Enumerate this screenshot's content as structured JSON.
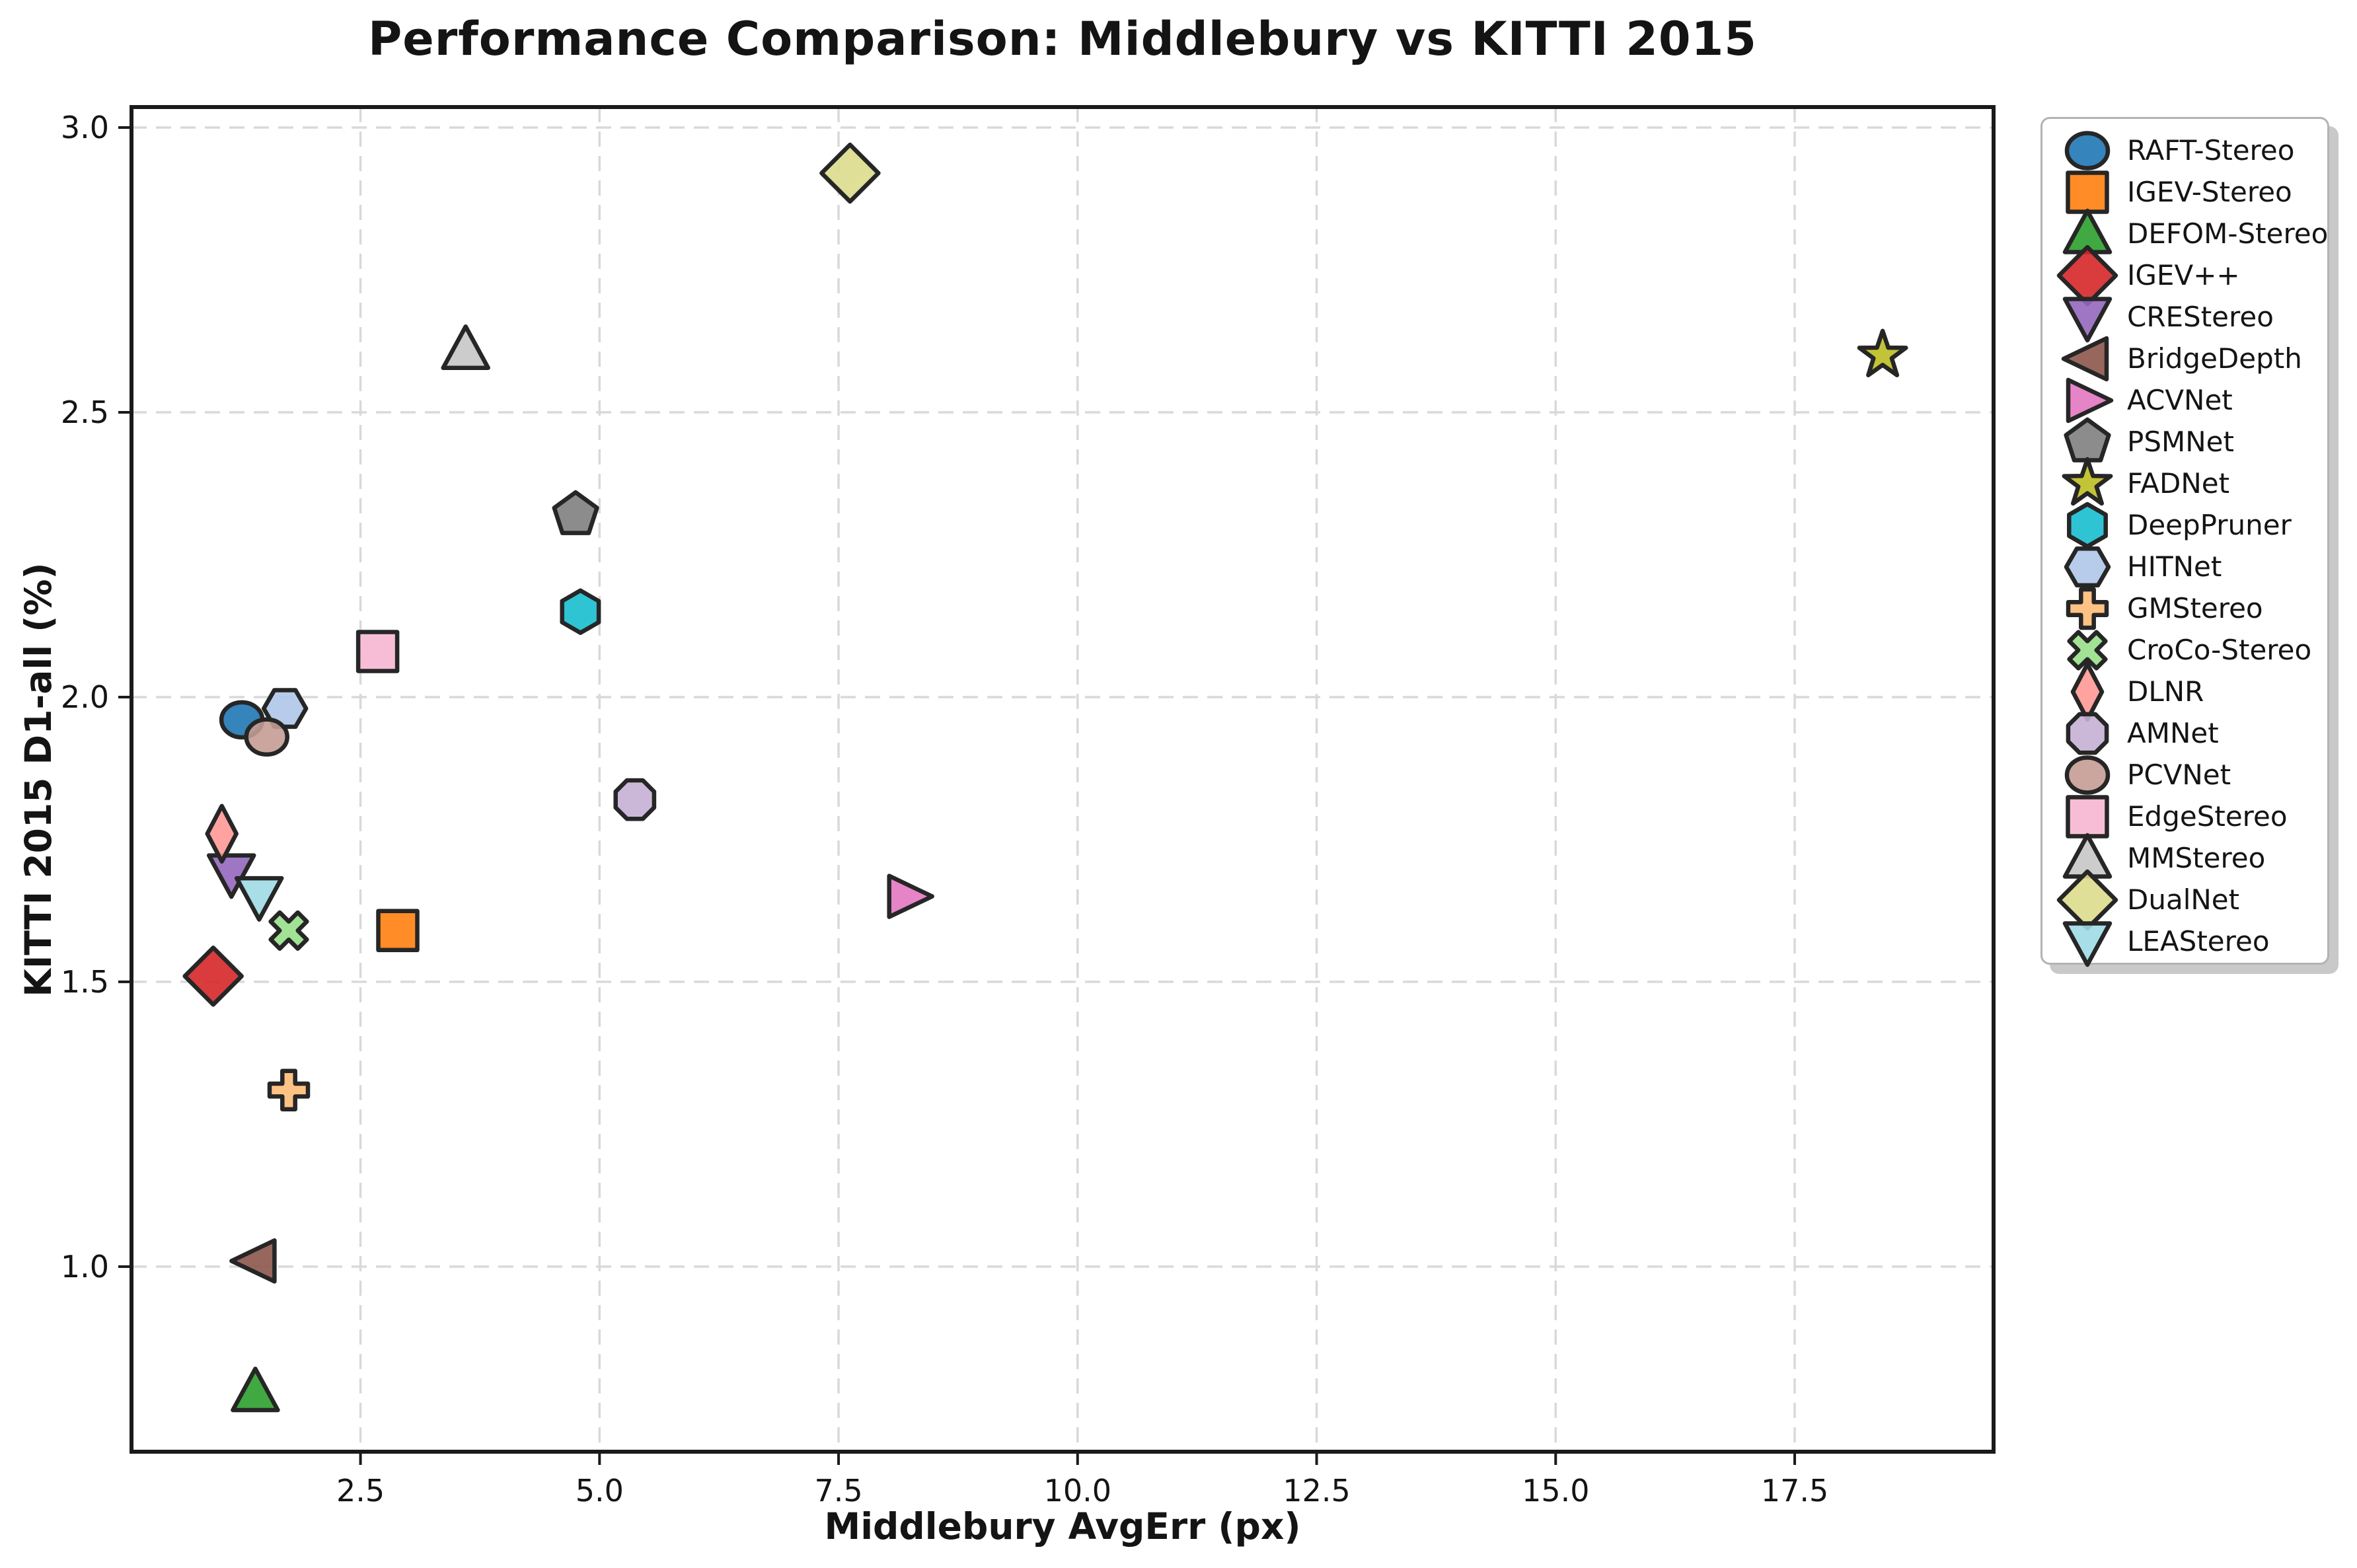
{
  "chart_data": {
    "type": "scatter",
    "title": "Performance Comparison: Middlebury vs KITTI 2015",
    "xlabel": "Middlebury AvgErr (px)",
    "ylabel": "KITTI 2015 D1-all (%)",
    "xlim": [
      0.105,
      19.58
    ],
    "ylim": [
      0.675,
      3.036
    ],
    "grid": true,
    "legend_position": "right-outside",
    "xticks": [
      {
        "v": 2.5,
        "label": "2.5"
      },
      {
        "v": 5.0,
        "label": "5.0"
      },
      {
        "v": 7.5,
        "label": "7.5"
      },
      {
        "v": 10.0,
        "label": "10.0"
      },
      {
        "v": 12.5,
        "label": "12.5"
      },
      {
        "v": 15.0,
        "label": "15.0"
      },
      {
        "v": 17.5,
        "label": "17.5"
      }
    ],
    "yticks": [
      {
        "v": 1.0,
        "label": "1.0"
      },
      {
        "v": 1.5,
        "label": "1.5"
      },
      {
        "v": 2.0,
        "label": "2.0"
      },
      {
        "v": 2.5,
        "label": "2.5"
      },
      {
        "v": 3.0,
        "label": "3.0"
      }
    ],
    "colors": {
      "grid": "#d9d9d9",
      "spine": "#1a1a1a",
      "marker_edge": "#262626",
      "tick_text": "#141414",
      "legend_border": "#b3b3b3",
      "legend_shadow": "#c9c9c9"
    },
    "series": [
      {
        "name": "RAFT-Stereo",
        "marker": "circle",
        "color": "#1f77b4",
        "x": 1.26,
        "y": 1.96
      },
      {
        "name": "IGEV-Stereo",
        "marker": "square",
        "color": "#ff7f0e",
        "x": 2.89,
        "y": 1.59
      },
      {
        "name": "DEFOM-Stereo",
        "marker": "triangle-up",
        "color": "#2ca02c",
        "x": 1.4,
        "y": 0.78
      },
      {
        "name": "IGEV++",
        "marker": "diamond",
        "color": "#d62728",
        "x": 0.96,
        "y": 1.51
      },
      {
        "name": "CREStereo",
        "marker": "triangle-down",
        "color": "#9467bd",
        "x": 1.15,
        "y": 1.69
      },
      {
        "name": "BridgeDepth",
        "marker": "triangle-left",
        "color": "#8c564b",
        "x": 1.4,
        "y": 1.01
      },
      {
        "name": "ACVNet",
        "marker": "triangle-right",
        "color": "#e377c2",
        "x": 8.23,
        "y": 1.65
      },
      {
        "name": "PSMNet",
        "marker": "pentagon",
        "color": "#7f7f7f",
        "x": 4.75,
        "y": 2.32
      },
      {
        "name": "FADNet",
        "marker": "star",
        "color": "#bcbd22",
        "x": 18.42,
        "y": 2.6
      },
      {
        "name": "DeepPruner",
        "marker": "hexagon-up",
        "color": "#17becf",
        "x": 4.8,
        "y": 2.15
      },
      {
        "name": "HITNet",
        "marker": "hexagon-flat",
        "color": "#aec7e8",
        "x": 1.71,
        "y": 1.98
      },
      {
        "name": "GMStereo",
        "marker": "plus",
        "color": "#ffbb78",
        "x": 1.75,
        "y": 1.31
      },
      {
        "name": "CroCo-Stereo",
        "marker": "x",
        "color": "#98df8a",
        "x": 1.75,
        "y": 1.59
      },
      {
        "name": "DLNR",
        "marker": "thin-diamond",
        "color": "#ff9896",
        "x": 1.05,
        "y": 1.76
      },
      {
        "name": "AMNet",
        "marker": "octagon",
        "color": "#c5b0d5",
        "x": 5.37,
        "y": 1.82
      },
      {
        "name": "PCVNet",
        "marker": "circle",
        "color": "#c49c94",
        "x": 1.52,
        "y": 1.93
      },
      {
        "name": "EdgeStereo",
        "marker": "square",
        "color": "#f7b6d2",
        "x": 2.68,
        "y": 2.08
      },
      {
        "name": "MMStereo",
        "marker": "triangle-up",
        "color": "#c7c7c7",
        "x": 3.6,
        "y": 2.61
      },
      {
        "name": "DualNet",
        "marker": "diamond",
        "color": "#dbdb8d",
        "x": 7.62,
        "y": 2.92
      },
      {
        "name": "LEAStereo",
        "marker": "triangle-down",
        "color": "#9edae5",
        "x": 1.44,
        "y": 1.65
      }
    ]
  }
}
